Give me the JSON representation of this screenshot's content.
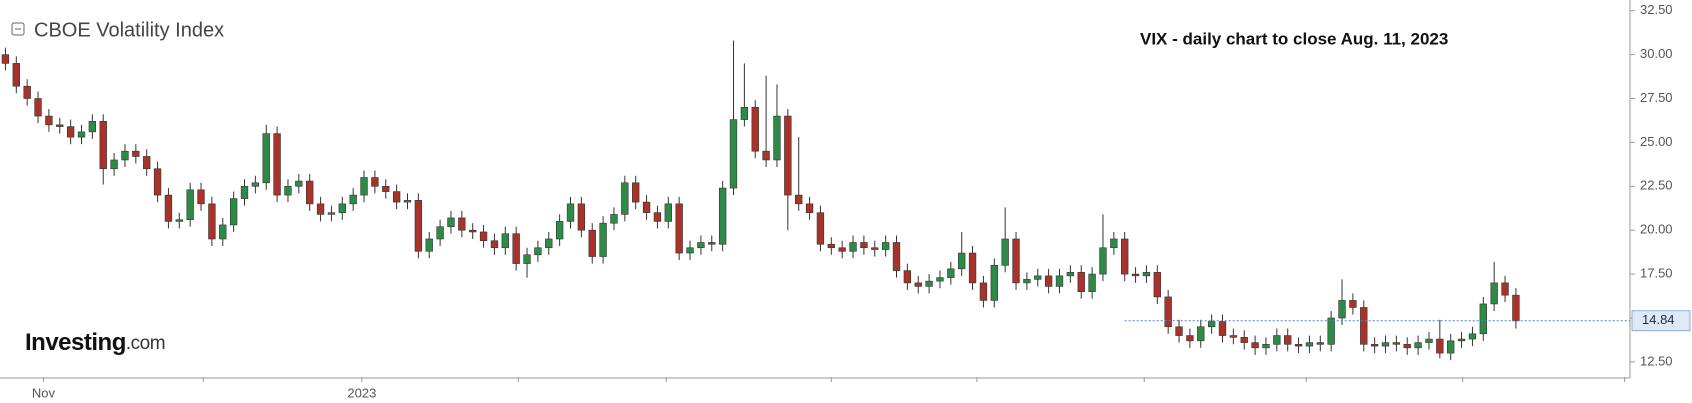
{
  "chart_data": {
    "type": "candlestick",
    "title": "CBOE Volatility Index",
    "annotation": "VIX - daily chart to close Aug. 11, 2023",
    "logo": {
      "brand": "Investing",
      "suffix": ".com"
    },
    "open": [
      30.0,
      29.5,
      28.2,
      27.5,
      26.5,
      26.0,
      25.9,
      25.3,
      25.6,
      26.2,
      23.5,
      24.0,
      24.5,
      24.2,
      23.5,
      22.0,
      20.5,
      20.6,
      22.3,
      21.5,
      19.5,
      20.3,
      21.8,
      22.5,
      22.7,
      25.5,
      22.0,
      22.5,
      22.8,
      21.5,
      20.9,
      21.0,
      21.5,
      22.0,
      23.0,
      22.5,
      22.2,
      21.6,
      21.7,
      18.8,
      19.5,
      20.2,
      20.7,
      20.0,
      19.9,
      19.4,
      19.0,
      19.8,
      18.1,
      18.6,
      19.0,
      19.5,
      20.5,
      21.5,
      20.0,
      18.5,
      20.4,
      20.9,
      22.7,
      21.6,
      21.0,
      20.5,
      21.5,
      18.7,
      19.0,
      19.3,
      19.2,
      22.4,
      26.3,
      27.0,
      24.5,
      24.0,
      26.5,
      22.0,
      21.5,
      21.0,
      19.2,
      19.0,
      18.8,
      19.3,
      19.0,
      18.9,
      19.3,
      17.7,
      17.0,
      16.8,
      17.1,
      17.3,
      17.8,
      18.7,
      17.0,
      16.0,
      18.0,
      19.5,
      17.0,
      17.2,
      17.4,
      16.8,
      17.4,
      17.6,
      16.5,
      17.5,
      19.0,
      19.5,
      17.5,
      17.4,
      17.6,
      16.2,
      14.5,
      14.0,
      13.7,
      14.5,
      14.8,
      14.0,
      13.9,
      13.6,
      13.3,
      13.5,
      14.0,
      13.5,
      13.4,
      13.6,
      13.5,
      15.0,
      16.0,
      15.6,
      13.5,
      13.4,
      13.6,
      13.5,
      13.3,
      13.6,
      13.8,
      13.0,
      13.7,
      13.8,
      14.1,
      15.8,
      17.0,
      16.3
    ],
    "high": [
      30.4,
      29.9,
      28.6,
      27.9,
      26.9,
      26.4,
      26.3,
      26.0,
      26.6,
      26.6,
      24.4,
      24.9,
      24.9,
      24.6,
      23.9,
      22.4,
      21.0,
      22.7,
      22.7,
      21.9,
      20.7,
      22.2,
      22.9,
      23.1,
      26.0,
      25.9,
      22.9,
      23.2,
      23.2,
      21.9,
      21.4,
      21.9,
      22.4,
      23.4,
      23.4,
      22.9,
      22.6,
      22.1,
      22.1,
      19.9,
      20.6,
      21.1,
      21.1,
      20.4,
      20.3,
      19.8,
      20.2,
      20.2,
      19.0,
      19.4,
      19.9,
      20.9,
      21.9,
      21.9,
      20.4,
      20.8,
      21.3,
      23.1,
      23.1,
      22.0,
      21.4,
      21.9,
      21.9,
      19.4,
      19.7,
      19.7,
      22.8,
      30.8,
      29.5,
      27.4,
      28.8,
      28.3,
      26.9,
      25.3,
      21.9,
      21.4,
      19.6,
      19.4,
      19.7,
      19.7,
      19.4,
      19.7,
      19.7,
      18.1,
      17.4,
      17.5,
      17.7,
      18.2,
      19.9,
      19.1,
      17.4,
      18.4,
      21.3,
      19.9,
      17.6,
      17.8,
      17.8,
      17.8,
      18.0,
      18.0,
      17.9,
      20.9,
      19.9,
      19.9,
      17.9,
      18.0,
      18.0,
      16.6,
      14.9,
      14.4,
      14.9,
      15.2,
      15.2,
      14.4,
      14.3,
      14.0,
      13.9,
      14.4,
      14.4,
      13.9,
      14.0,
      14.0,
      15.4,
      17.2,
      16.4,
      16.0,
      13.9,
      14.0,
      14.0,
      13.9,
      14.0,
      14.2,
      14.9,
      14.1,
      14.2,
      14.5,
      16.2,
      18.2,
      17.4,
      16.7
    ],
    "low": [
      29.1,
      27.8,
      27.1,
      26.1,
      25.6,
      25.5,
      24.9,
      24.9,
      25.2,
      22.6,
      23.1,
      23.6,
      23.8,
      23.1,
      21.6,
      20.1,
      20.1,
      20.2,
      21.1,
      19.1,
      19.1,
      19.9,
      21.4,
      22.1,
      22.3,
      21.6,
      21.6,
      22.1,
      21.1,
      20.5,
      20.5,
      20.6,
      21.1,
      21.6,
      22.1,
      21.8,
      21.2,
      21.2,
      18.4,
      18.4,
      19.1,
      19.8,
      19.6,
      19.5,
      19.0,
      18.6,
      18.6,
      17.7,
      17.3,
      18.2,
      18.6,
      19.1,
      20.1,
      19.6,
      18.1,
      18.1,
      20.0,
      20.5,
      21.2,
      20.6,
      20.1,
      20.1,
      18.3,
      18.3,
      18.6,
      18.8,
      18.8,
      22.0,
      25.9,
      24.1,
      23.6,
      23.6,
      20.0,
      21.1,
      20.6,
      18.8,
      18.6,
      18.4,
      18.4,
      18.6,
      18.5,
      18.5,
      17.3,
      16.6,
      16.4,
      16.4,
      16.7,
      16.9,
      17.4,
      16.6,
      15.6,
      15.6,
      17.6,
      16.6,
      16.6,
      16.8,
      16.4,
      16.4,
      17.0,
      16.1,
      16.1,
      17.1,
      18.6,
      17.1,
      17.0,
      17.0,
      15.8,
      14.1,
      13.6,
      13.3,
      13.3,
      14.1,
      13.6,
      13.5,
      13.2,
      12.9,
      12.9,
      13.1,
      13.1,
      13.0,
      13.0,
      13.1,
      13.1,
      14.6,
      15.2,
      13.1,
      13.0,
      13.0,
      13.1,
      12.9,
      12.9,
      13.2,
      12.7,
      12.6,
      13.3,
      13.4,
      13.7,
      15.4,
      15.9,
      14.4
    ],
    "close": [
      29.5,
      28.2,
      27.5,
      26.5,
      26.0,
      25.9,
      25.3,
      25.6,
      26.2,
      23.5,
      24.0,
      24.5,
      24.2,
      23.5,
      22.0,
      20.5,
      20.6,
      22.3,
      21.5,
      19.5,
      20.3,
      21.8,
      22.5,
      22.7,
      25.5,
      22.0,
      22.5,
      22.8,
      21.5,
      20.9,
      21.0,
      21.5,
      22.0,
      23.0,
      22.5,
      22.2,
      21.6,
      21.7,
      18.8,
      19.5,
      20.2,
      20.7,
      20.0,
      19.9,
      19.4,
      19.0,
      19.8,
      18.1,
      18.6,
      19.0,
      19.5,
      20.5,
      21.5,
      20.0,
      18.5,
      20.4,
      20.9,
      22.7,
      21.6,
      21.0,
      20.5,
      21.5,
      18.7,
      19.0,
      19.3,
      19.2,
      22.4,
      26.3,
      27.0,
      24.5,
      24.0,
      26.5,
      22.0,
      21.5,
      21.0,
      19.2,
      19.0,
      18.8,
      19.3,
      19.0,
      18.9,
      19.3,
      17.7,
      17.0,
      16.8,
      17.1,
      17.3,
      17.8,
      18.7,
      17.0,
      16.0,
      18.0,
      19.5,
      17.0,
      17.2,
      17.4,
      16.8,
      17.4,
      17.6,
      16.5,
      17.5,
      19.0,
      19.5,
      17.5,
      17.4,
      17.6,
      16.2,
      14.5,
      14.0,
      13.7,
      14.5,
      14.8,
      14.0,
      13.9,
      13.6,
      13.3,
      13.5,
      14.0,
      13.5,
      13.4,
      13.6,
      13.5,
      15.0,
      16.0,
      15.6,
      13.5,
      13.4,
      13.6,
      13.5,
      13.3,
      13.6,
      13.8,
      13.0,
      13.7,
      13.8,
      14.1,
      15.8,
      17.0,
      16.3,
      14.84
    ],
    "up_color": "#2e8b47",
    "down_color": "#a8332a",
    "last_value": 14.84,
    "last_value_color": "#4f7fd0",
    "xlim": [
      -0.5,
      149.5
    ],
    "xticks": [
      {
        "value": 3.5,
        "label": "Nov"
      },
      18.2,
      {
        "value": 32.8,
        "label": "2023"
      },
      47.2,
      60.8,
      76,
      89.4,
      104.8,
      119.7,
      134.1,
      149
    ],
    "ylim": [
      11.64,
      33.11
    ],
    "yticks": [
      {
        "value": 12.5,
        "label": "12.50"
      },
      {
        "value": 15,
        "label": "15.00"
      },
      {
        "value": 17.5,
        "label": "17.50"
      },
      {
        "value": 20,
        "label": "20.00"
      },
      {
        "value": 22.5,
        "label": "22.50"
      },
      {
        "value": 25,
        "label": "25.00"
      },
      {
        "value": 27.5,
        "label": "27.50"
      },
      {
        "value": 30,
        "label": "30.00"
      },
      {
        "value": 32.5,
        "label": "32.50"
      }
    ]
  }
}
